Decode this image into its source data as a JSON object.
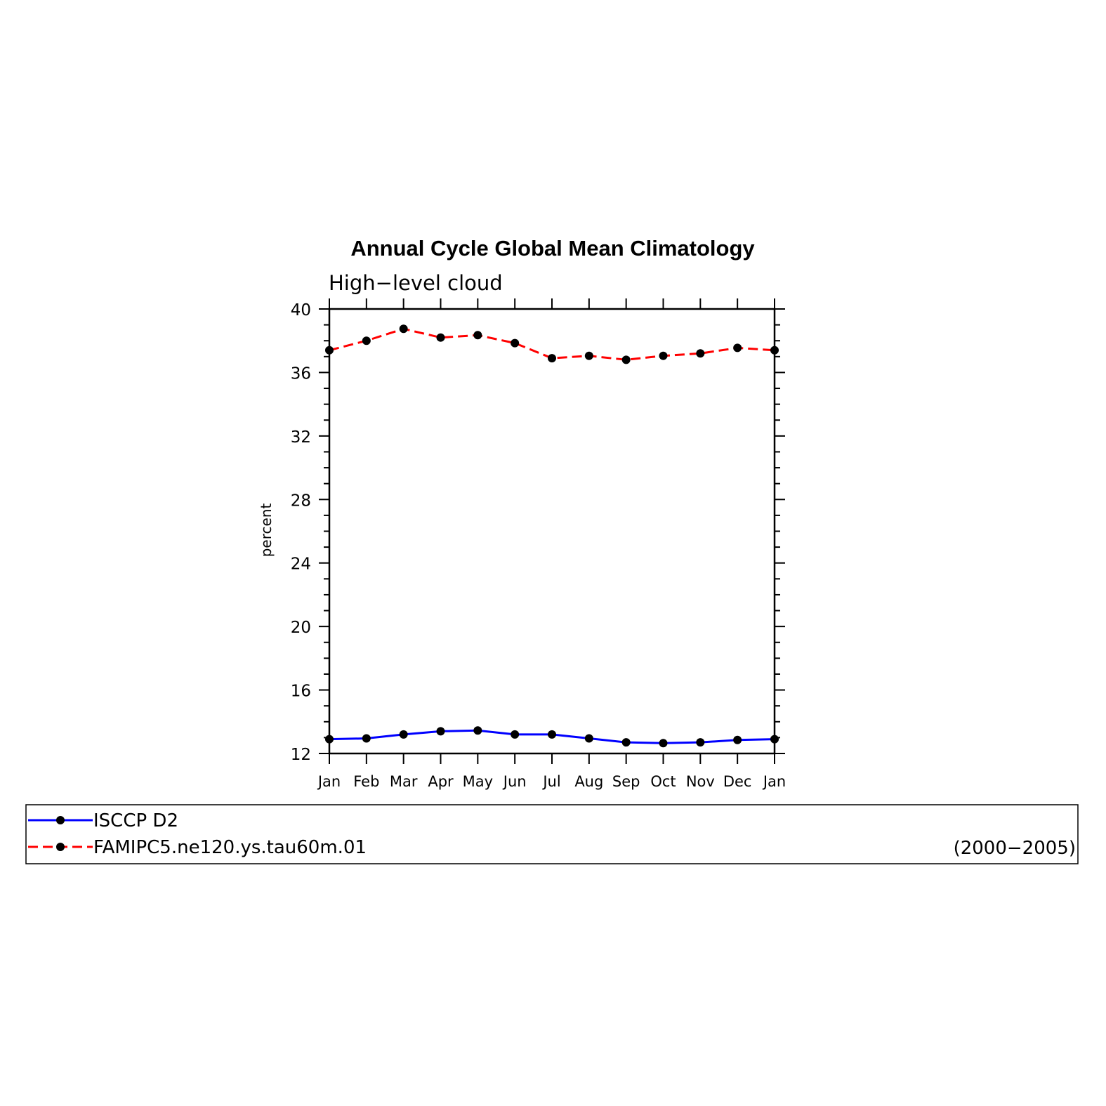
{
  "chart_data": {
    "type": "line",
    "title": "Annual Cycle Global Mean Climatology",
    "subtitle": "High−level cloud",
    "xlabel": "",
    "ylabel": "percent",
    "categories": [
      "Jan",
      "Feb",
      "Mar",
      "Apr",
      "May",
      "Jun",
      "Jul",
      "Aug",
      "Sep",
      "Oct",
      "Nov",
      "Dec",
      "Jan"
    ],
    "ylim": [
      12,
      40
    ],
    "yticks": [
      12,
      16,
      20,
      24,
      28,
      32,
      36,
      40
    ],
    "grid": false,
    "legend_position": "bottom",
    "series": [
      {
        "name": "ISCCP D2",
        "color": "#0000ff",
        "line_style": "solid",
        "marker": "filled-circle",
        "values": [
          12.9,
          12.95,
          13.2,
          13.4,
          13.45,
          13.2,
          13.2,
          12.95,
          12.7,
          12.65,
          12.7,
          12.85,
          12.9
        ]
      },
      {
        "name": "FAMIPC5.ne120.ys.tau60m.01",
        "color": "#ff0000",
        "line_style": "dashed",
        "marker": "filled-circle",
        "values": [
          37.4,
          38.0,
          38.75,
          38.2,
          38.35,
          37.85,
          36.9,
          37.05,
          36.8,
          37.05,
          37.2,
          37.55,
          37.4
        ]
      }
    ],
    "annotation": "(2000−2005)"
  }
}
